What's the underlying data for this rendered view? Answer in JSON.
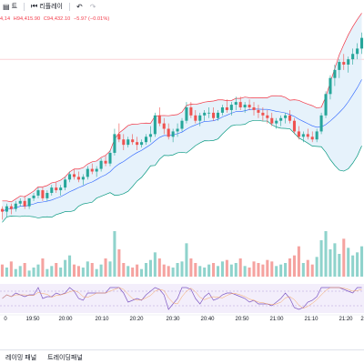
{
  "toolbar": {
    "items": [
      {
        "label": "트",
        "icon": "chart-icon"
      },
      {
        "label": "리플레이",
        "icon": "replay-icon"
      }
    ],
    "undo_icon": "↶",
    "redo_icon": "↷"
  },
  "ohlc": {
    "open": "4,14",
    "high": "H94,415.90",
    "close": "C94,432.10",
    "change": "−5.97 (−0.01%)"
  },
  "time_axis": {
    "labels": [
      "0",
      "19:50",
      "20:00",
      "20:10",
      "20:20",
      "20:30",
      "20:40",
      "20:50",
      "21:00",
      "21:10",
      "21:20",
      "2"
    ]
  },
  "bottom_tabs": {
    "tabs": [
      "레이밍 패널",
      "트레이딩패널"
    ]
  },
  "colors": {
    "up": "#26a69a",
    "down": "#ef5350",
    "band_upper": "#f23645",
    "band_lower": "#089981",
    "band_basis": "#2962ff",
    "band_fill": "#d6eaf8",
    "osc": "#7e57c2"
  },
  "chart_data": {
    "type": "candlestick",
    "note_units": "price index",
    "candles": [
      [
        30,
        31,
        26,
        29
      ],
      [
        29,
        32,
        27,
        31
      ],
      [
        31,
        32,
        28,
        30
      ],
      [
        30,
        33,
        29,
        32
      ],
      [
        32,
        34,
        31,
        33
      ],
      [
        33,
        35,
        30,
        31
      ],
      [
        31,
        34,
        30,
        34
      ],
      [
        34,
        36,
        33,
        35
      ],
      [
        35,
        38,
        34,
        37
      ],
      [
        37,
        38,
        33,
        34
      ],
      [
        34,
        37,
        33,
        36
      ],
      [
        36,
        39,
        35,
        38
      ],
      [
        38,
        40,
        36,
        37
      ],
      [
        37,
        39,
        35,
        38
      ],
      [
        38,
        42,
        37,
        41
      ],
      [
        41,
        44,
        40,
        43
      ],
      [
        43,
        45,
        41,
        42
      ],
      [
        42,
        44,
        40,
        41
      ],
      [
        41,
        43,
        39,
        42
      ],
      [
        42,
        46,
        41,
        45
      ],
      [
        45,
        47,
        43,
        44
      ],
      [
        44,
        46,
        42,
        45
      ],
      [
        45,
        49,
        44,
        48
      ],
      [
        48,
        50,
        46,
        47
      ],
      [
        47,
        52,
        46,
        51
      ],
      [
        51,
        60,
        50,
        58
      ],
      [
        58,
        62,
        55,
        56
      ],
      [
        56,
        58,
        52,
        54
      ],
      [
        54,
        57,
        53,
        56
      ],
      [
        56,
        58,
        54,
        55
      ],
      [
        55,
        57,
        52,
        54
      ],
      [
        54,
        56,
        53,
        55
      ],
      [
        55,
        58,
        54,
        57
      ],
      [
        57,
        61,
        55,
        58
      ],
      [
        58,
        66,
        57,
        65
      ],
      [
        65,
        68,
        61,
        62
      ],
      [
        62,
        64,
        58,
        60
      ],
      [
        60,
        62,
        56,
        57
      ],
      [
        57,
        60,
        55,
        59
      ],
      [
        59,
        62,
        57,
        60
      ],
      [
        60,
        64,
        59,
        63
      ],
      [
        63,
        70,
        62,
        68
      ],
      [
        68,
        70,
        64,
        65
      ],
      [
        65,
        67,
        62,
        63
      ],
      [
        63,
        66,
        61,
        65
      ],
      [
        65,
        67,
        63,
        66
      ],
      [
        66,
        68,
        64,
        66
      ],
      [
        66,
        68,
        63,
        64
      ],
      [
        64,
        67,
        63,
        66
      ],
      [
        66,
        69,
        65,
        68
      ],
      [
        68,
        71,
        66,
        67
      ],
      [
        67,
        70,
        65,
        69
      ],
      [
        69,
        72,
        67,
        70
      ],
      [
        70,
        72,
        67,
        68
      ],
      [
        68,
        70,
        66,
        69
      ],
      [
        69,
        71,
        67,
        68
      ],
      [
        68,
        70,
        65,
        67
      ],
      [
        67,
        69,
        64,
        66
      ],
      [
        66,
        68,
        63,
        65
      ],
      [
        65,
        67,
        62,
        64
      ],
      [
        64,
        66,
        61,
        62
      ],
      [
        62,
        64,
        60,
        63
      ],
      [
        63,
        65,
        61,
        64
      ],
      [
        64,
        66,
        62,
        65
      ],
      [
        65,
        67,
        62,
        63
      ],
      [
        63,
        64,
        58,
        59
      ],
      [
        59,
        61,
        56,
        57
      ],
      [
        57,
        59,
        55,
        58
      ],
      [
        58,
        60,
        56,
        57
      ],
      [
        57,
        59,
        55,
        56
      ],
      [
        56,
        60,
        55,
        59
      ],
      [
        59,
        66,
        58,
        65
      ],
      [
        65,
        74,
        64,
        73
      ],
      [
        73,
        80,
        71,
        79
      ],
      [
        79,
        84,
        76,
        82
      ],
      [
        82,
        86,
        79,
        85
      ],
      [
        85,
        88,
        82,
        84
      ],
      [
        84,
        87,
        81,
        86
      ],
      [
        86,
        90,
        84,
        88
      ],
      [
        88,
        92,
        86,
        90
      ],
      [
        90,
        96,
        88,
        94
      ]
    ],
    "volumes": [
      8,
      6,
      10,
      5,
      7,
      9,
      4,
      6,
      8,
      12,
      5,
      7,
      9,
      6,
      11,
      14,
      8,
      7,
      6,
      10,
      9,
      5,
      8,
      12,
      10,
      30,
      18,
      9,
      7,
      6,
      8,
      5,
      9,
      11,
      16,
      12,
      8,
      7,
      6,
      9,
      10,
      22,
      12,
      9,
      7,
      6,
      8,
      9,
      7,
      10,
      11,
      8,
      9,
      12,
      7,
      6,
      10,
      9,
      8,
      11,
      10,
      7,
      8,
      9,
      12,
      14,
      20,
      9,
      11,
      8,
      13,
      24,
      30,
      18,
      22,
      15,
      25,
      19,
      14,
      16,
      20
    ],
    "ylim": [
      20,
      100
    ]
  }
}
